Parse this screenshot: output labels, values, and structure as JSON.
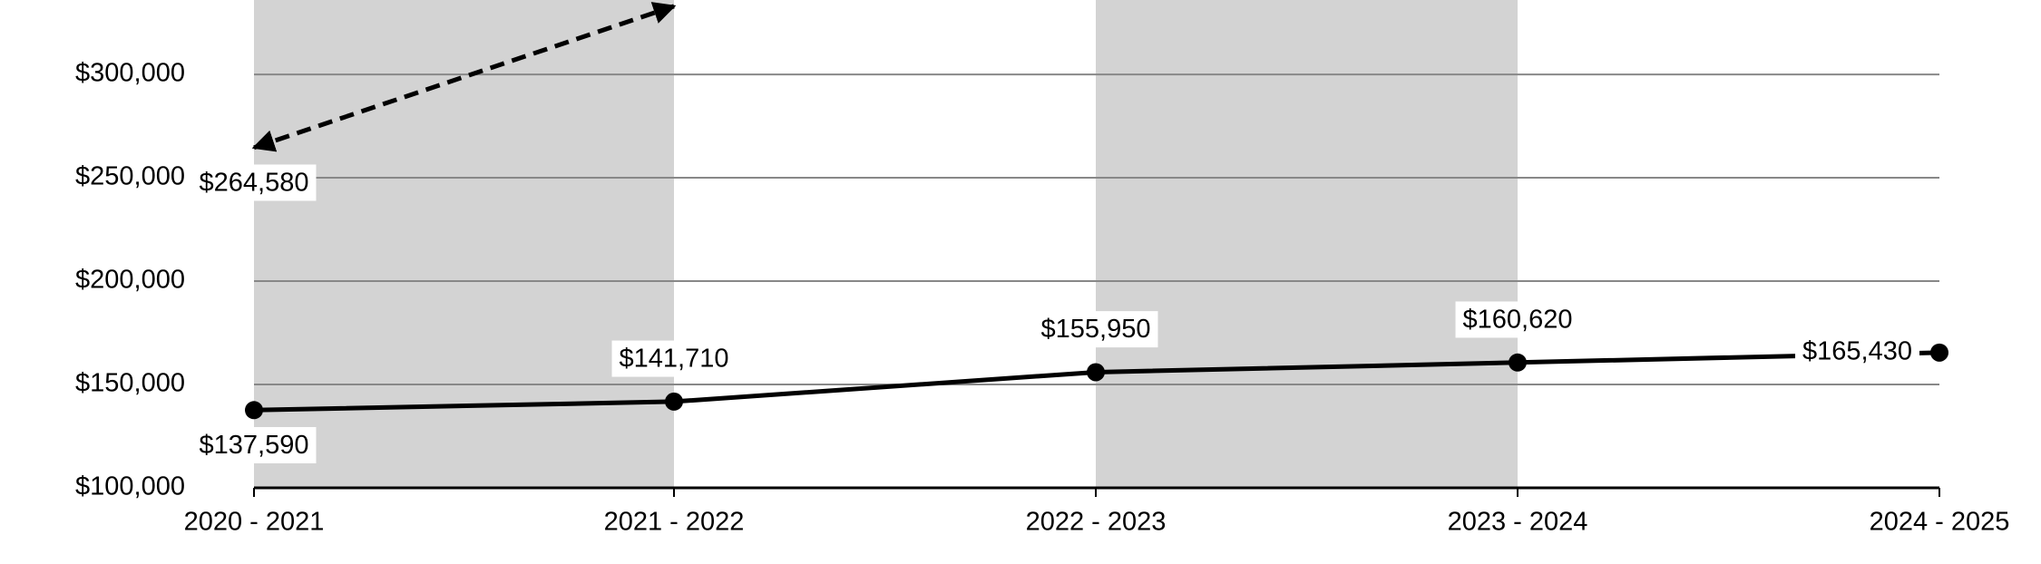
{
  "chart_data": {
    "type": "line",
    "categories": [
      "2020 - 2021",
      "2021 - 2022",
      "2022 - 2023",
      "2023 - 2024",
      "2024 - 2025"
    ],
    "series": [
      {
        "color": "#000000",
        "style": "solid",
        "values": [
          137590,
          141710,
          155950,
          160620,
          165430
        ],
        "value_labels": [
          "$137,590",
          "$141,710",
          "$155,950",
          "$160,620",
          "$165,430"
        ]
      },
      {
        "color": "#000000",
        "style": "dashed",
        "values": [
          264580,
          333000,
          null,
          null,
          null
        ],
        "value_labels": [
          "$264,580",
          null,
          null,
          null,
          null
        ]
      }
    ],
    "ylim": [
      100000,
      336000
    ],
    "yticks": [
      {
        "value": 100000,
        "label": "$100,000"
      },
      {
        "value": 150000,
        "label": "$150,000"
      },
      {
        "value": 200000,
        "label": "$200,000"
      },
      {
        "value": 250000,
        "label": "$250,000"
      },
      {
        "value": 300000,
        "label": "$300,000"
      }
    ],
    "grid": true
  }
}
